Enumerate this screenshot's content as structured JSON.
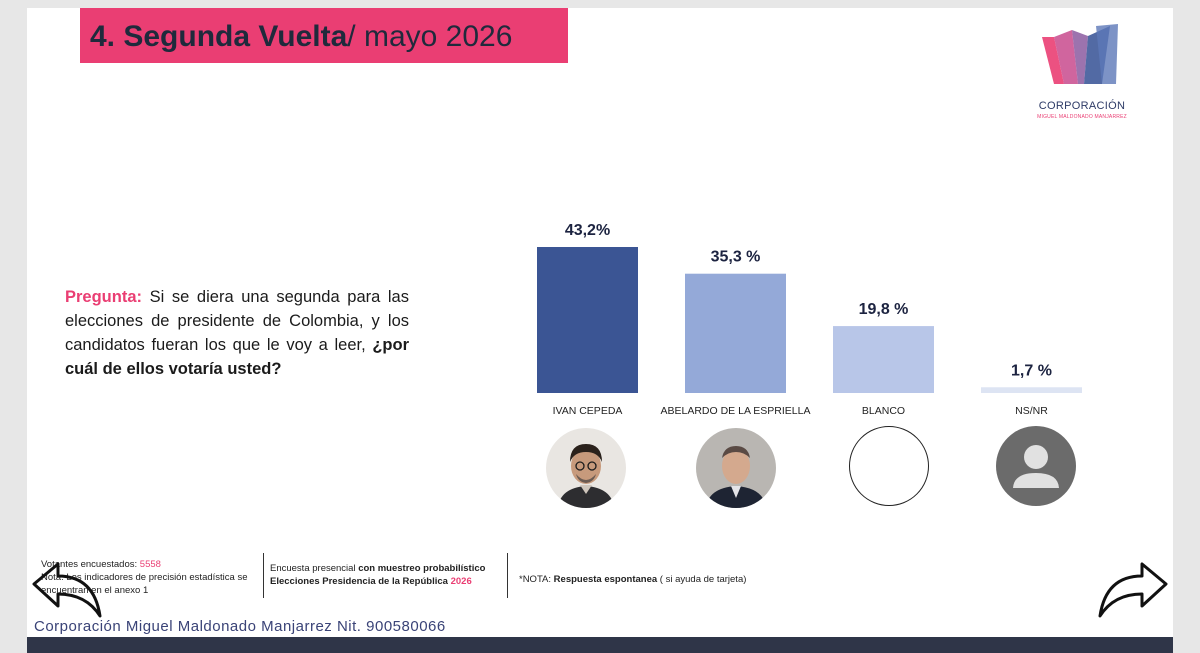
{
  "title": {
    "bold": "4. Segunda Vuelta",
    "rest": "/ mayo 2026"
  },
  "logo": {
    "org": "CORPORACIÓN",
    "sub": "MIGUEL MALDONADO MANJARREZ"
  },
  "question": {
    "label": "Pregunta:",
    "text": " Si se diera una segunda para las elecciones de presidente de Colombia, y los candidatos fueran los que le voy a leer, ",
    "emphasis": "¿por cuál de ellos votaría usted?"
  },
  "chart_data": {
    "type": "bar",
    "categories": [
      "IVAN CEPEDA",
      "ABELARDO DE LA ESPRIELLA",
      "BLANCO",
      "NS/NR"
    ],
    "values": [
      43.2,
      35.3,
      19.8,
      1.7
    ],
    "value_labels": [
      "43,2%",
      "35,3 %",
      "19,8 %",
      "1,7 %"
    ],
    "colors": [
      "#3b5594",
      "#94a9d8",
      "#b8c6e8",
      "#dde4f3"
    ],
    "title": "",
    "xlabel": "",
    "ylabel": "",
    "ylim": [
      0,
      43.2
    ]
  },
  "footer": {
    "respondents_label": "Votantes encuestados: ",
    "respondents_value": "5558",
    "precision_note": "Nota: Los indicadores de precisión estadística se encuentran en el anexo 1",
    "survey_line1_a": "Encuesta presencial ",
    "survey_line1_b": "con muestreo probabilístico",
    "survey_line2_a": "Elecciones Presidencia de la República ",
    "survey_line2_b": "2026",
    "note_a": "*NOTA: ",
    "note_b": "Respuesta espontanea",
    "note_c": " ( si ayuda de tarjeta)",
    "nit": "Corporación Miguel Maldonado Manjarrez Nit. 900580066"
  },
  "colors": {
    "accent": "#ea3e73",
    "navy": "#2f3548"
  },
  "icons": [
    "prev-arrow-icon",
    "next-arrow-icon",
    "user-placeholder-icon"
  ]
}
